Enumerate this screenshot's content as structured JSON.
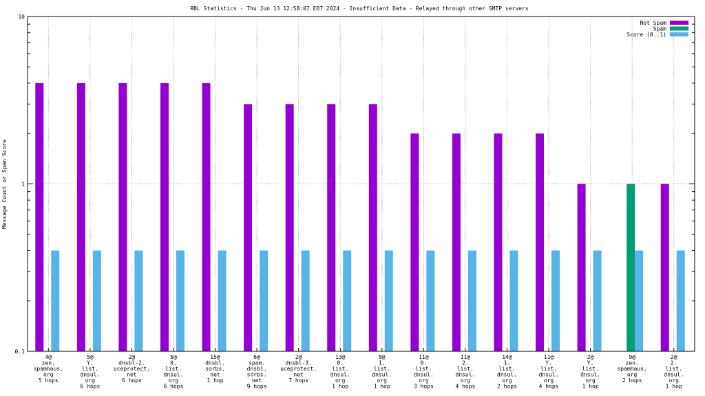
{
  "chart_data": {
    "type": "bar",
    "title": "RBL Statistics - Thu Jun 13 12:58:07 EDT 2024 - Insufficient Data - Relayed through other SMTP servers",
    "ylabel": "Message Count or Spam Score",
    "xlabel": "",
    "yscale": "log",
    "ylim": [
      0.1,
      10
    ],
    "yticks": [
      "0.1",
      "1",
      "10"
    ],
    "grid": true,
    "legend_position": "top-right",
    "categories": [
      [
        "4@",
        "zen.",
        "spamhaus.",
        "org",
        "5 hops"
      ],
      [
        "5@",
        "Y.",
        "list.",
        "dnsul.",
        "org",
        "6 hops"
      ],
      [
        "2@",
        "dnsbl-2.",
        "uceprotect.",
        "net",
        "6 hops"
      ],
      [
        "5@",
        "0.",
        "list.",
        "dnsul.",
        "org",
        "6 hops"
      ],
      [
        "15@",
        "dnsbl.",
        "sorbs.",
        "net",
        "1 hop"
      ],
      [
        "6@",
        "spam.",
        "dnsbl.",
        "sorbs.",
        "net",
        "9 hops"
      ],
      [
        "2@",
        "dnsbl-3.",
        "uceprotect.",
        "net",
        "7 hops"
      ],
      [
        "13@",
        "0.",
        "list.",
        "dnsul.",
        "org",
        "1 hop"
      ],
      [
        "8@",
        "1.",
        "list.",
        "dnsul.",
        "org",
        "1 hop"
      ],
      [
        "11@",
        "0.",
        "list.",
        "dnsul.",
        "org",
        "3 hops"
      ],
      [
        "11@",
        "2.",
        "list.",
        "dnsul.",
        "org",
        "4 hops"
      ],
      [
        "14@",
        "1.",
        "list.",
        "dnsul.",
        "org",
        "2 hops"
      ],
      [
        "11@",
        "Y.",
        "list.",
        "dnsul.",
        "org",
        "4 hops"
      ],
      [
        "2@",
        "Y.",
        "list.",
        "dnsul.",
        "org",
        "1 hop"
      ],
      [
        "9@",
        "zen.",
        "spamhaus.",
        "org",
        "2 hops"
      ],
      [
        "2@",
        "2.",
        "list.",
        "dnsul.",
        "org",
        "1 hop"
      ]
    ],
    "series": [
      {
        "name": "Not Spam",
        "color": "#9400d3",
        "values": [
          4,
          4,
          4,
          4,
          4,
          3,
          3,
          3,
          3,
          2,
          2,
          2,
          2,
          1,
          null,
          1
        ]
      },
      {
        "name": "Spam",
        "color": "#009e73",
        "values": [
          null,
          null,
          null,
          null,
          null,
          null,
          null,
          null,
          null,
          null,
          null,
          null,
          null,
          null,
          1,
          null
        ]
      },
      {
        "name": "Score (0..1)",
        "color": "#56b4e9",
        "values": [
          0.4,
          0.4,
          0.4,
          0.4,
          0.4,
          0.4,
          0.4,
          0.4,
          0.4,
          0.4,
          0.4,
          0.4,
          0.4,
          0.4,
          0.4,
          0.4
        ]
      }
    ]
  }
}
